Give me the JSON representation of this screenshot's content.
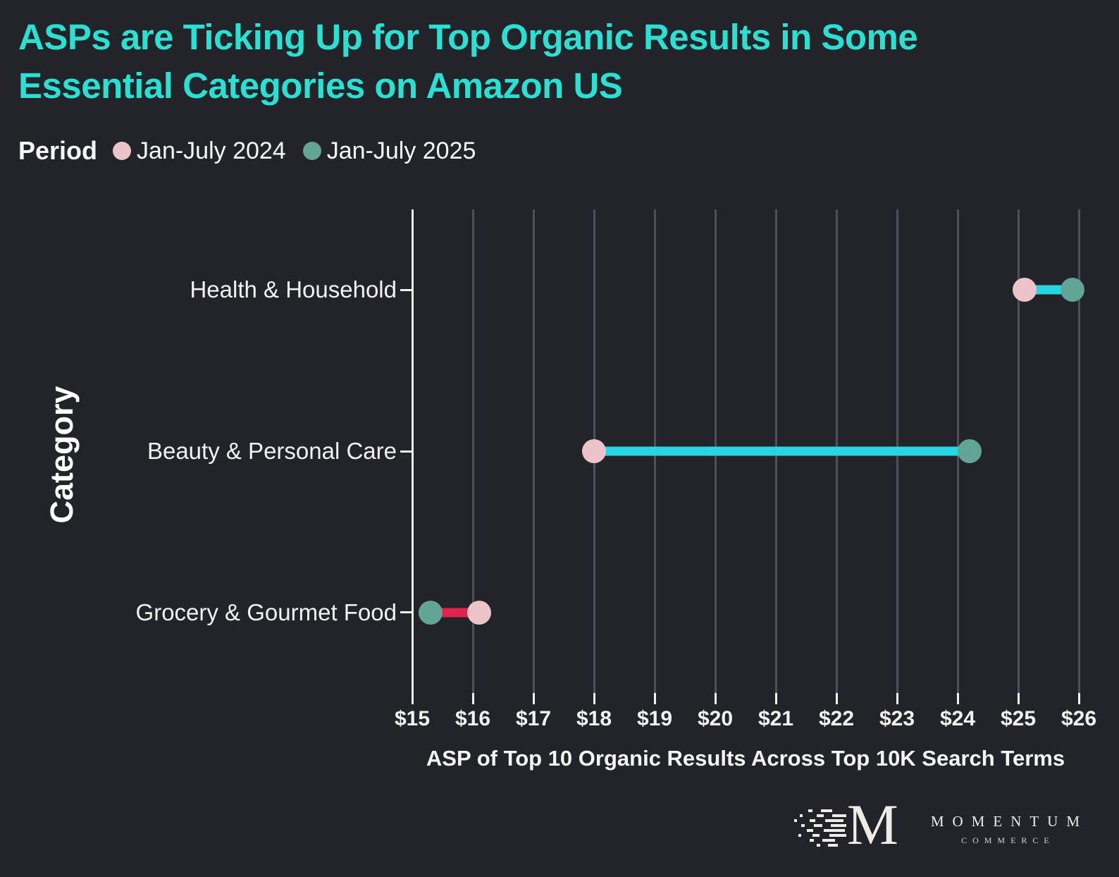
{
  "title": {
    "line1": "ASPs are Ticking Up for Top Organic Results in Some",
    "line2": "Essential Categories on Amazon US"
  },
  "legend": {
    "label": "Period",
    "items": [
      {
        "label": "Jan-July 2024",
        "color": "#edc3ca"
      },
      {
        "label": "Jan-July 2025",
        "color": "#62a597"
      }
    ]
  },
  "chart_data": {
    "type": "dumbbell",
    "categories": [
      "Health & Household",
      "Beauty & Personal Care",
      "Grocery & Gourmet Food"
    ],
    "series": [
      {
        "name": "Jan-July 2024",
        "color": "#edc3ca",
        "values": [
          25.1,
          18.0,
          16.1
        ]
      },
      {
        "name": "Jan-July 2025",
        "color": "#62a597",
        "values": [
          25.9,
          24.2,
          15.3
        ]
      }
    ],
    "connector_colors": [
      "#26d7e3",
      "#26d7e3",
      "#e2234e"
    ],
    "increase_color": "#26d7e3",
    "decrease_color": "#e2234e",
    "title": "ASPs are Ticking Up for Top Organic Results in Some Essential Categories on Amazon US",
    "xlabel": "ASP of Top 10 Organic Results Across Top 10K Search Terms",
    "ylabel": "Category",
    "xlim": [
      15,
      26
    ],
    "xticks": [
      "$15",
      "$16",
      "$17",
      "$18",
      "$19",
      "$20",
      "$21",
      "$22",
      "$23",
      "$24",
      "$25",
      "$26"
    ],
    "grid": "vertical",
    "legend_position": "top-left",
    "background": "#22242a",
    "grid_color": "#4d5056",
    "axis_color": "#f2f2f2",
    "title_color": "#2be0d2"
  },
  "logo": {
    "monogram": "M",
    "name": "MOMENTUM",
    "sub": "COMMERCE"
  }
}
